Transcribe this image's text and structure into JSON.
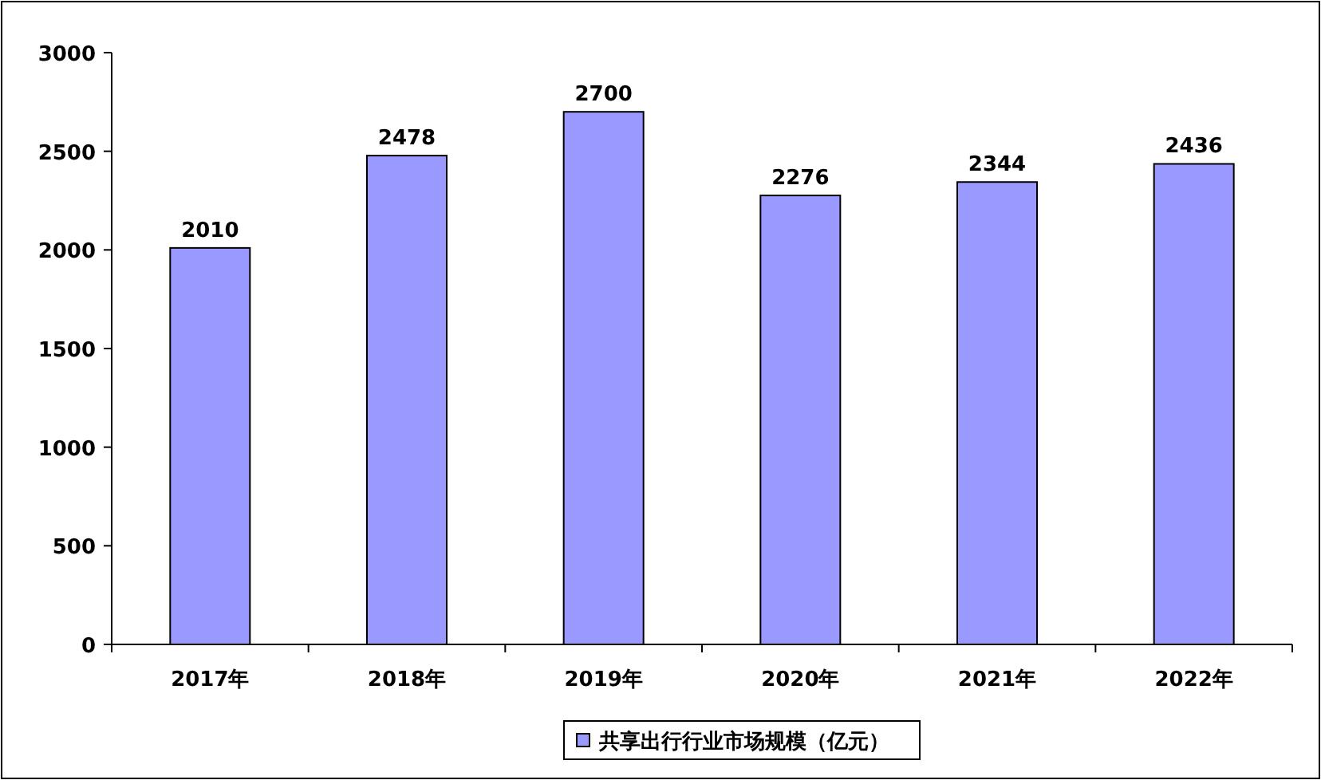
{
  "chart_data": {
    "type": "bar",
    "categories": [
      "2017年",
      "2018年",
      "2019年",
      "2020年",
      "2021年",
      "2022年"
    ],
    "series": [
      {
        "name": "共享出行行业市场规模（亿元）",
        "color": "#9999ff",
        "values": [
          2010,
          2478,
          2700,
          2276,
          2344,
          2436
        ]
      }
    ],
    "ylim": [
      0,
      3000
    ],
    "yticks": [
      0,
      500,
      1000,
      1500,
      2000,
      2500,
      3000
    ],
    "data_labels": true,
    "legend": "bottom",
    "grid": false
  }
}
